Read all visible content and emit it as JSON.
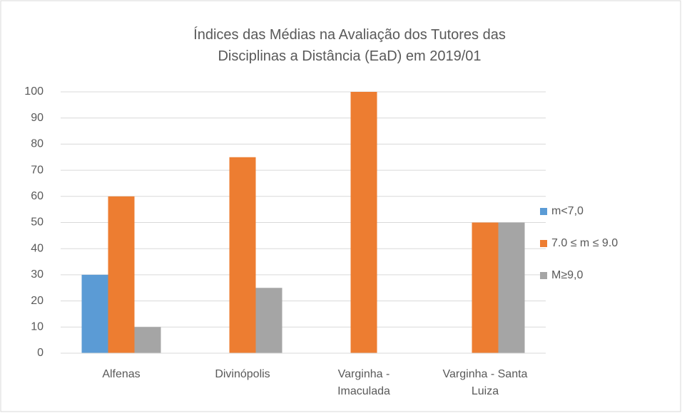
{
  "chart_data": {
    "type": "bar",
    "title": "Índices das Médias na Avaliação dos Tutores das Disciplinas a Distância (EaD) em 2019/01",
    "categories": [
      "Alfenas",
      "Divinópolis",
      "Varginha - Imaculada",
      "Varginha - Santa Luiza"
    ],
    "series": [
      {
        "name": "m<7,0",
        "color": "#5b9bd5",
        "values": [
          30,
          0,
          0,
          0
        ]
      },
      {
        "name": "7.0 ≤ m ≤ 9.0",
        "color": "#ed7d31",
        "values": [
          60,
          75,
          100,
          50
        ]
      },
      {
        "name": "M≥9,0",
        "color": "#a5a5a5",
        "values": [
          10,
          25,
          0,
          50
        ]
      }
    ],
    "ylim": [
      0,
      100
    ],
    "yticks": [
      0,
      10,
      20,
      30,
      40,
      50,
      60,
      70,
      80,
      90,
      100
    ],
    "grid": true,
    "legend": "right"
  }
}
